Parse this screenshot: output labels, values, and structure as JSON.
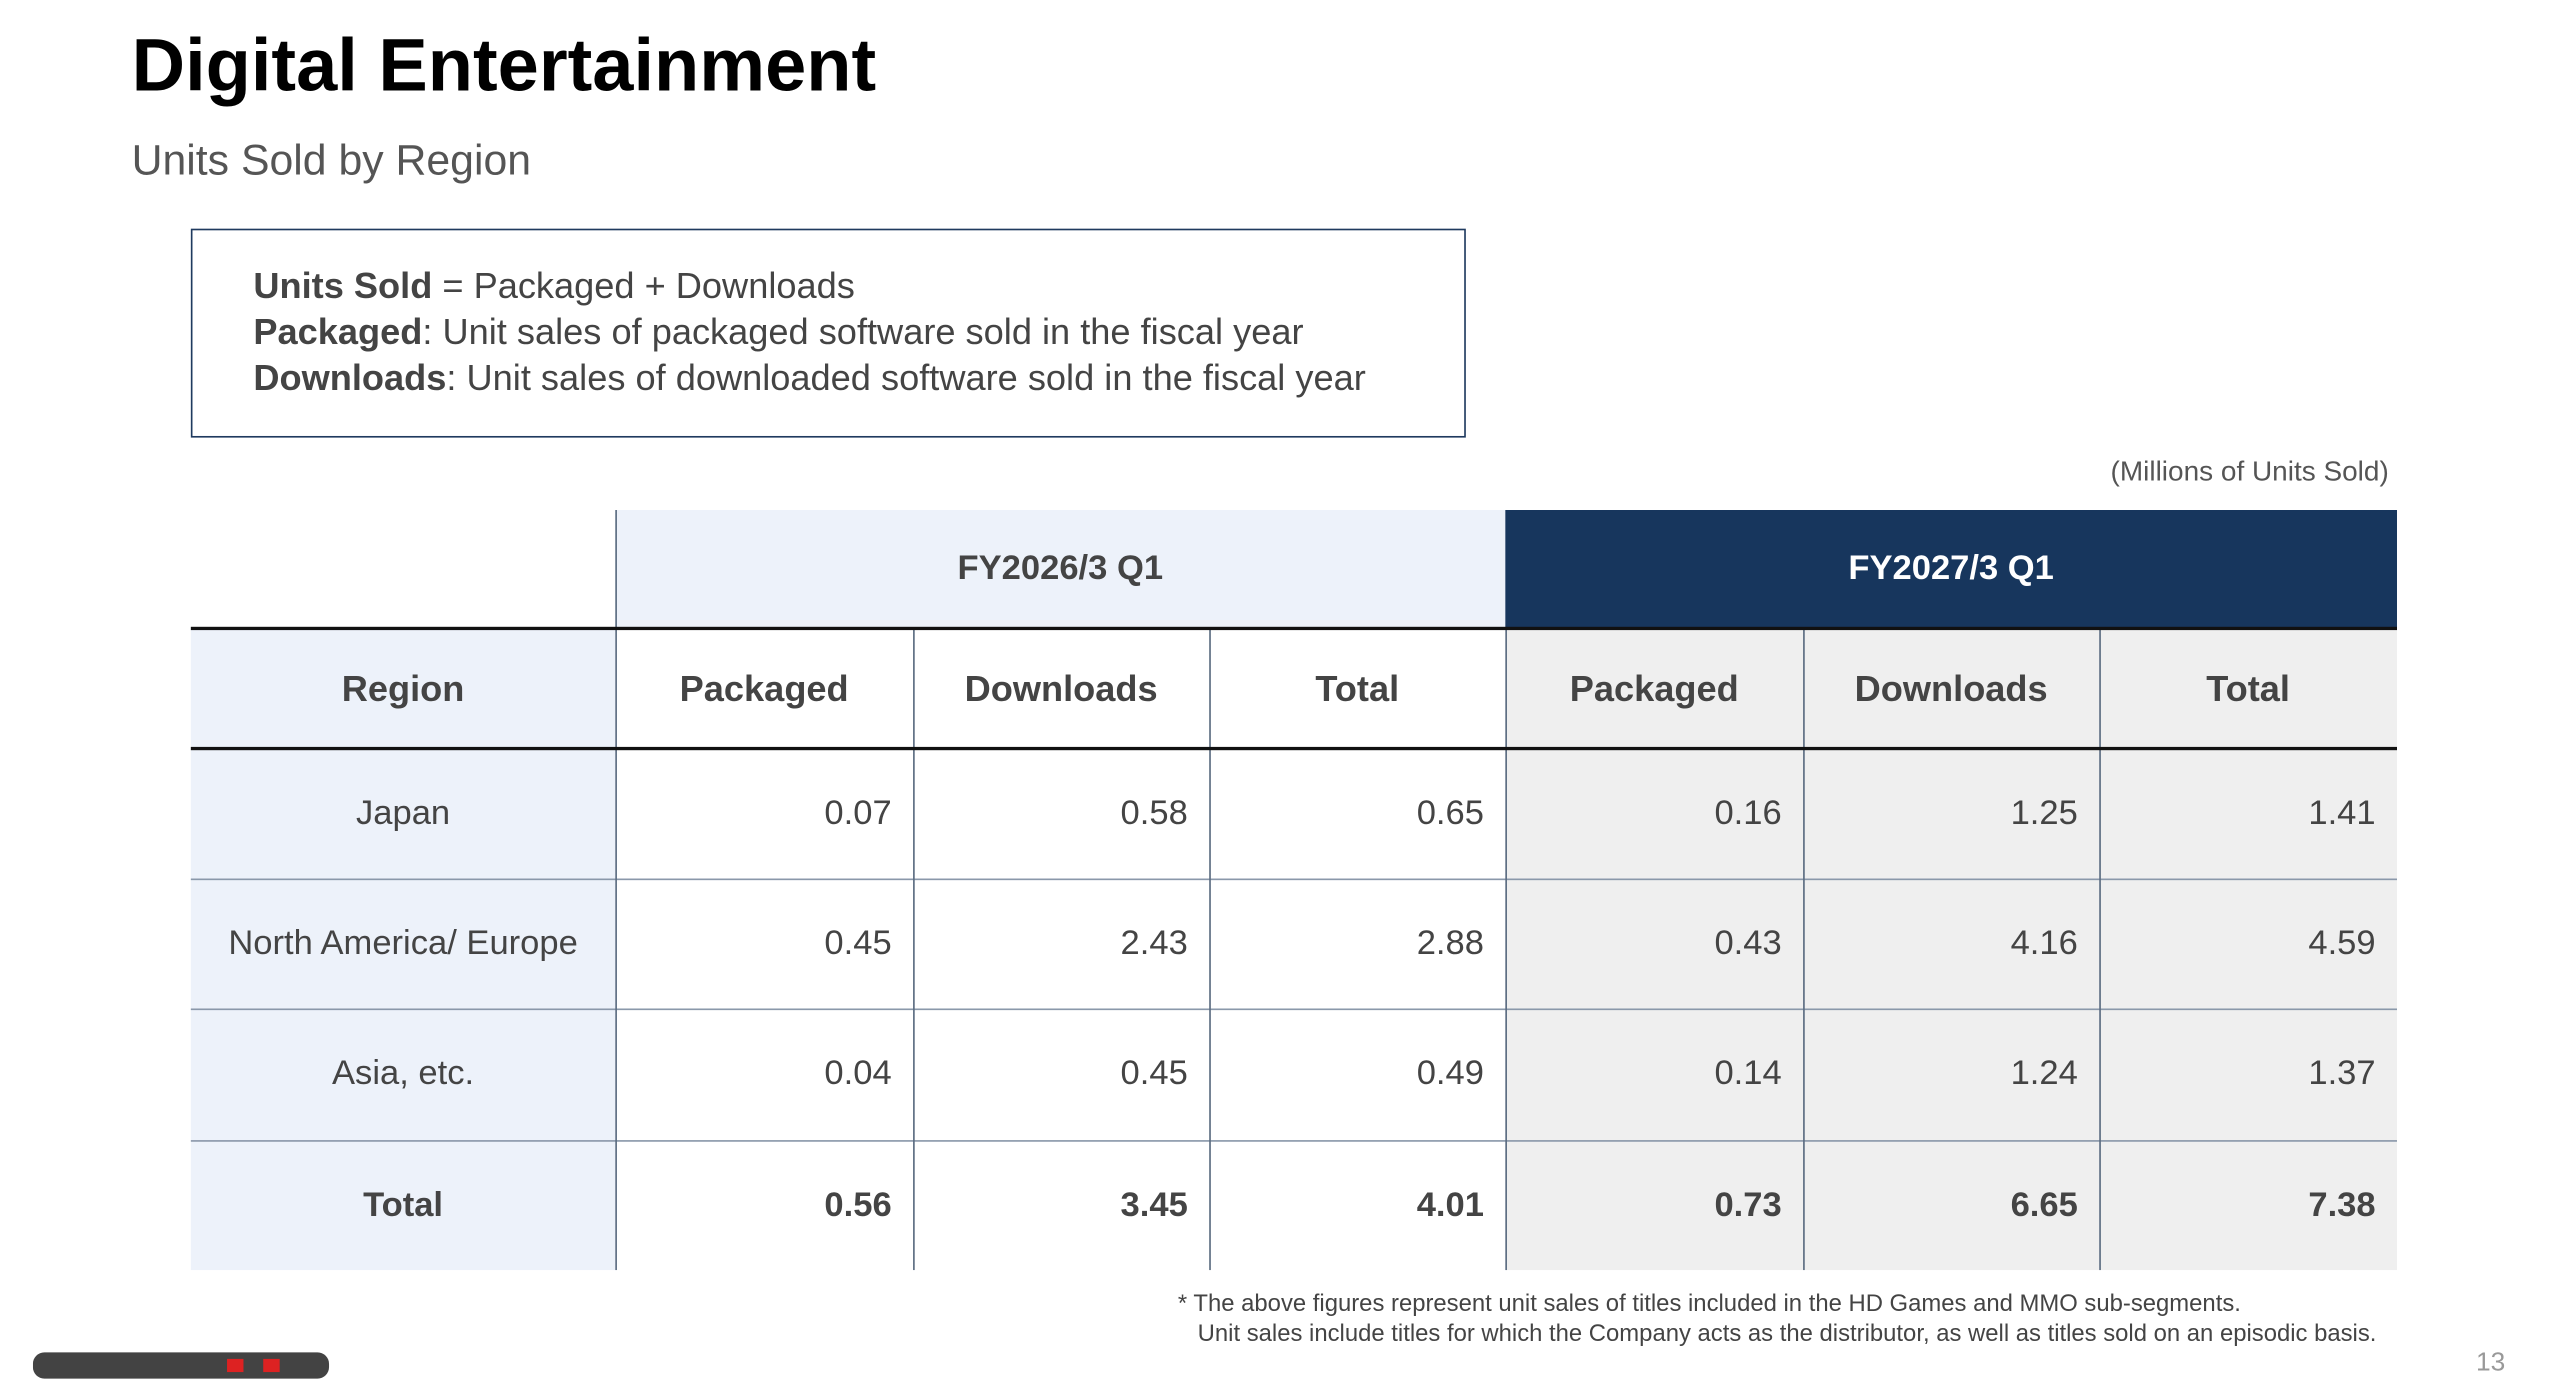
{
  "header": {
    "title": "Digital Entertainment",
    "subtitle": "Units Sold by Region"
  },
  "definitions": [
    {
      "term": "Units Sold",
      "text": " = Packaged + Downloads"
    },
    {
      "term": "Packaged",
      "text": ": Unit sales of packaged software sold in the fiscal year"
    },
    {
      "term": "Downloads",
      "text": ": Unit sales of downloaded software sold in the fiscal year"
    }
  ],
  "unit_note": "(Millions of Units Sold)",
  "table": {
    "group_headers": [
      "FY2026/3 Q1",
      "FY2027/3 Q1"
    ],
    "columns": [
      "Region",
      "Packaged",
      "Downloads",
      "Total",
      "Packaged",
      "Downloads",
      "Total"
    ],
    "rows": [
      {
        "region": "Japan",
        "values": [
          0.07,
          0.58,
          0.65,
          0.16,
          1.25,
          1.41
        ]
      },
      {
        "region": "North America/ Europe",
        "values": [
          0.45,
          2.43,
          2.88,
          0.43,
          4.16,
          4.59
        ]
      },
      {
        "region": "Asia, etc.",
        "values": [
          0.04,
          0.45,
          0.49,
          0.14,
          1.24,
          1.37
        ]
      },
      {
        "region": "Total",
        "values": [
          0.56,
          3.45,
          4.01,
          0.73,
          6.65,
          7.38
        ]
      }
    ]
  },
  "footnotes": [
    "* The above figures represent unit sales of titles included in the HD Games and MMO sub-segments.",
    "Unit sales include titles for which the Company acts as the distributor, as well as titles sold on an episodic basis."
  ],
  "page_number": "13"
}
